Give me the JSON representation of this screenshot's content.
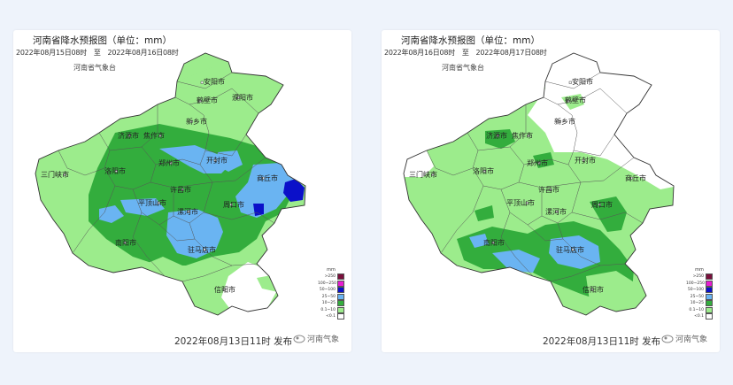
{
  "maps": [
    {
      "title": "河南省降水预报图（单位：mm）",
      "period": "2022年08月15日08时　至　2022年08月16日08时",
      "issuer": "河南省气象台",
      "footer": "2022年08月13日11时 发布",
      "logo": "河南气象",
      "cities": [
        "安阳市",
        "鹤壁市",
        "新乡市",
        "濮阳市",
        "济源市",
        "焦作市",
        "郑州市",
        "开封市",
        "商丘市",
        "三门峡市",
        "洛阳市",
        "许昌市",
        "周口市",
        "平顶山市",
        "漯河市",
        "南阳市",
        "驻马店市",
        "信阳市"
      ]
    },
    {
      "title": "河南省降水预报图（单位：mm）",
      "period": "2022年08月16日08时　至　2022年08月17日08时",
      "issuer": "河南省气象台",
      "footer": "2022年08月13日11时 发布",
      "logo": "河南气象",
      "cities": [
        "安阳市",
        "鹤壁市",
        "新乡市",
        "济源市",
        "焦作市",
        "郑州市",
        "开封市",
        "商丘市",
        "三门峡市",
        "洛阳市",
        "许昌市",
        "周口市",
        "平顶山市",
        "漯河市",
        "南阳市",
        "驻马店市",
        "信阳市"
      ]
    }
  ],
  "legend": {
    "unit": "mm",
    "items": [
      {
        "label": ">250",
        "color": "#7a0f3c"
      },
      {
        "label": "100~250",
        "color": "#e81bd2"
      },
      {
        "label": "50~100",
        "color": "#0b10c9"
      },
      {
        "label": "25~50",
        "color": "#6ab4f2"
      },
      {
        "label": "10~25",
        "color": "#33ad3d"
      },
      {
        "label": "0.1~10",
        "color": "#9cec8c"
      },
      {
        "label": "<0.1",
        "color": "#ffffff"
      }
    ]
  }
}
